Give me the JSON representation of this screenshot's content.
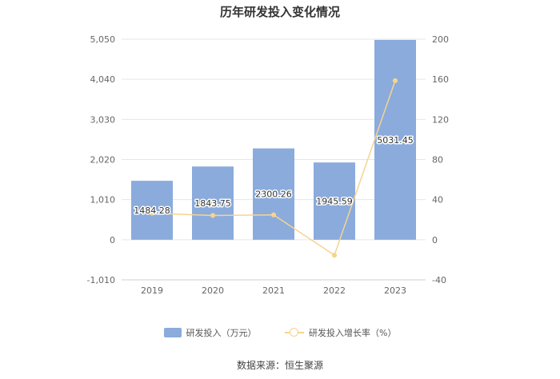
{
  "chart_data": {
    "type": "bar",
    "title": "历年研发投入变化情况",
    "categories": [
      "2019",
      "2020",
      "2021",
      "2022",
      "2023"
    ],
    "series": [
      {
        "name": "研发投入（万元）",
        "type": "bar",
        "axis": "left",
        "values": [
          1484.28,
          1843.75,
          2300.26,
          1945.59,
          5031.45
        ],
        "data_labels": [
          "1484.28",
          "1843.75",
          "2300.26",
          "1945.59",
          "5031.45"
        ],
        "color": "#8aabdc"
      },
      {
        "name": "研发投入增长率（%）",
        "type": "line",
        "axis": "right",
        "values": [
          26.5,
          24.2,
          24.8,
          -15.4,
          158.6
        ],
        "color": "#f5d48f"
      }
    ],
    "y_left": {
      "min": -1010,
      "max": 5050,
      "ticks": [
        -1010,
        0,
        1010,
        2020,
        3030,
        4040,
        5050
      ],
      "tick_labels": [
        "-1,010",
        "0",
        "1,010",
        "2,020",
        "3,030",
        "4,040",
        "5,050"
      ]
    },
    "y_right": {
      "min": -40,
      "max": 200,
      "ticks": [
        -40,
        0,
        40,
        80,
        120,
        160,
        200
      ],
      "tick_labels": [
        "-40",
        "0",
        "40",
        "80",
        "120",
        "160",
        "200"
      ]
    },
    "grid": true,
    "legend_position": "bottom"
  },
  "legend": {
    "bar_label": "研发投入（万元）",
    "line_label": "研发投入增长率（%）"
  },
  "source": "数据来源：恒生聚源"
}
